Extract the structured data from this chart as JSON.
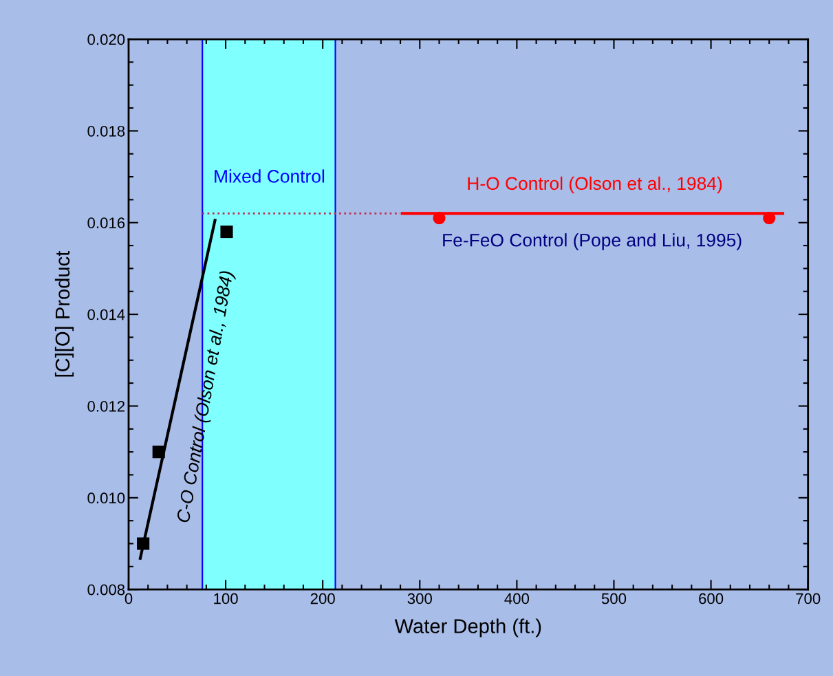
{
  "chart_data": {
    "type": "scatter",
    "xlabel": "Water Depth (ft.)",
    "ylabel": "[C][O] Product",
    "xlim": [
      0,
      700
    ],
    "xticks": [
      0,
      100,
      200,
      300,
      400,
      500,
      600,
      700
    ],
    "ylim": [
      0.008,
      0.02
    ],
    "yticks": [
      {
        "value": 0.008,
        "label": "0.008"
      },
      {
        "value": 0.01,
        "label": "0.010"
      },
      {
        "value": 0.012,
        "label": "0.012"
      },
      {
        "value": 0.014,
        "label": "0.014"
      },
      {
        "value": 0.016,
        "label": "0.016"
      },
      {
        "value": 0.018,
        "label": "0.018"
      },
      {
        "value": 0.02,
        "label": "0.020"
      }
    ],
    "grid": false,
    "legend": false,
    "bands": [
      {
        "axis": "x",
        "from": 76,
        "to": 213,
        "color": "#80ffff"
      }
    ],
    "series": [
      {
        "marker": "square",
        "color": "#000000",
        "x": [
          15,
          31,
          101
        ],
        "values": [
          0.009,
          0.011,
          0.0158
        ]
      },
      {
        "type": "line",
        "color": "#000000",
        "line_style": "solid",
        "marker": "none",
        "x": [
          12,
          89
        ],
        "values": [
          0.00868,
          0.01605
        ]
      },
      {
        "type": "line",
        "color": "#c03050",
        "line_style": "dotted",
        "marker": "none",
        "x": [
          76,
          280
        ],
        "values": [
          0.0162,
          0.0162
        ]
      },
      {
        "type": "line",
        "color": "#ff0000",
        "line_style": "solid",
        "marker": "none",
        "x": [
          282,
          674
        ],
        "values": [
          0.0162,
          0.0162
        ]
      },
      {
        "marker": "circle",
        "color": "#ff0000",
        "x": [
          320,
          660
        ],
        "values": [
          0.0161,
          0.0161
        ]
      }
    ],
    "annotations": [
      "Mixed Control",
      "H-O Control (Olson et al., 1984)",
      "Fe-FeO Control (Pope and Liu, 1995)",
      {
        "text": "C-O Control (Olson et al., 1984)",
        "x": 80,
        "y": 0.0122
      }
    ]
  }
}
